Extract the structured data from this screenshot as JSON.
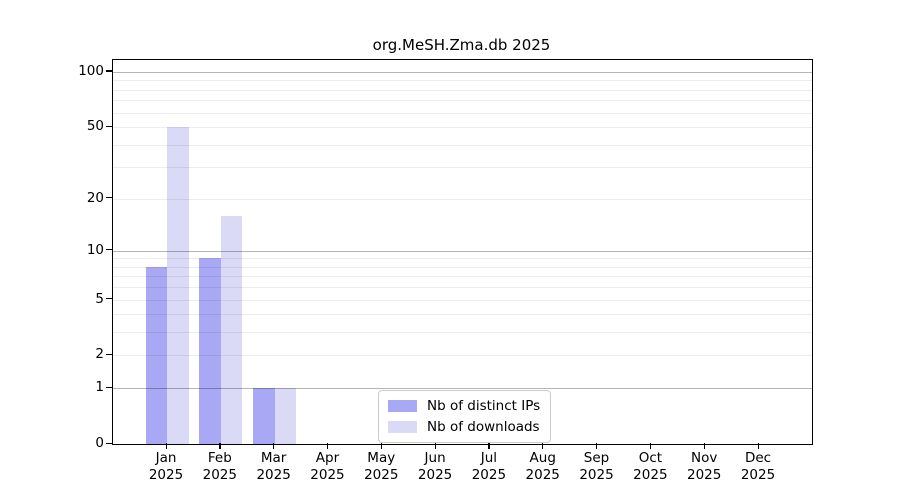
{
  "chart_data": {
    "type": "bar",
    "title": "org.MeSH.Zma.db 2025",
    "xlabel": "",
    "ylabel": "",
    "scale": "log1p (symlog-like: y position proportional to log10(1+value))",
    "categories": [
      "Jan",
      "Feb",
      "Mar",
      "Apr",
      "May",
      "Jun",
      "Jul",
      "Aug",
      "Sep",
      "Oct",
      "Nov",
      "Dec"
    ],
    "year_label": "2025",
    "series": [
      {
        "name": "Nb of distinct IPs",
        "color": "#a8a8f5",
        "values": [
          8,
          9,
          1,
          0,
          0,
          0,
          0,
          0,
          0,
          0,
          0,
          0
        ]
      },
      {
        "name": "Nb of downloads",
        "color": "#dadaf7",
        "values": [
          50,
          16,
          1,
          0,
          0,
          0,
          0,
          0,
          0,
          0,
          0,
          0
        ]
      }
    ],
    "y_ticks": [
      0,
      1,
      2,
      5,
      10,
      20,
      50,
      100
    ],
    "y_minor_gridlines": [
      2,
      3,
      4,
      5,
      6,
      7,
      8,
      9,
      20,
      30,
      40,
      50,
      60,
      70,
      80,
      90
    ],
    "y_major_gridlines": [
      1,
      10,
      100
    ],
    "ylim": [
      0,
      117
    ],
    "grid": "horizontal",
    "legend_position": "inside-bottom-center"
  }
}
